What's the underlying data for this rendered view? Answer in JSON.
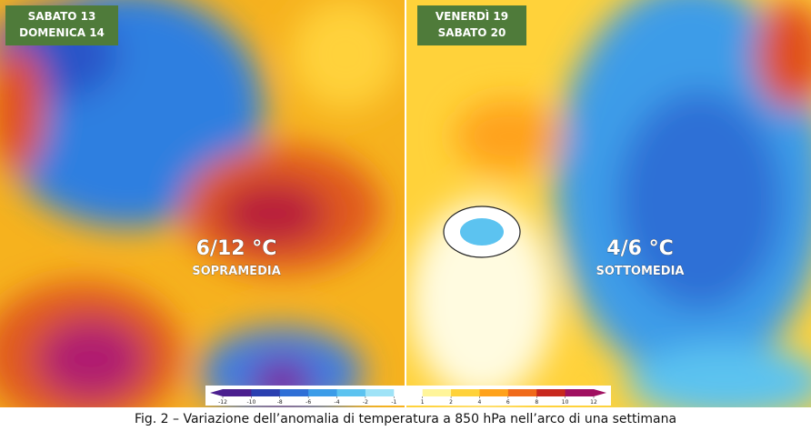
{
  "panels": [
    {
      "dates": [
        "SABATO 13",
        "DOMENICA 14"
      ],
      "anomaly": "6/12 °C",
      "label": "SOPRAMEDIA"
    },
    {
      "dates": [
        "VENERDÌ 19",
        "SABATO 20"
      ],
      "anomaly": "4/6 °C",
      "label": "SOTTOMEDIA"
    }
  ],
  "colorbar": {
    "ticks": [
      -12,
      -10,
      -8,
      -6,
      -4,
      -2,
      -1,
      1,
      2,
      4,
      6,
      8,
      10,
      12
    ],
    "colors": [
      "#4b1f8f",
      "#2a3fb0",
      "#2f6fd6",
      "#3c9ce8",
      "#5cc3f0",
      "#9fe3f7",
      "#ffffff",
      "#fff59a",
      "#ffd23a",
      "#ffa21a",
      "#f06a1a",
      "#c8281e",
      "#a01060"
    ]
  },
  "caption": "Fig. 2 – Variazione dell’anomalia di temperatura a 850 hPa nell’arco di una settimana"
}
